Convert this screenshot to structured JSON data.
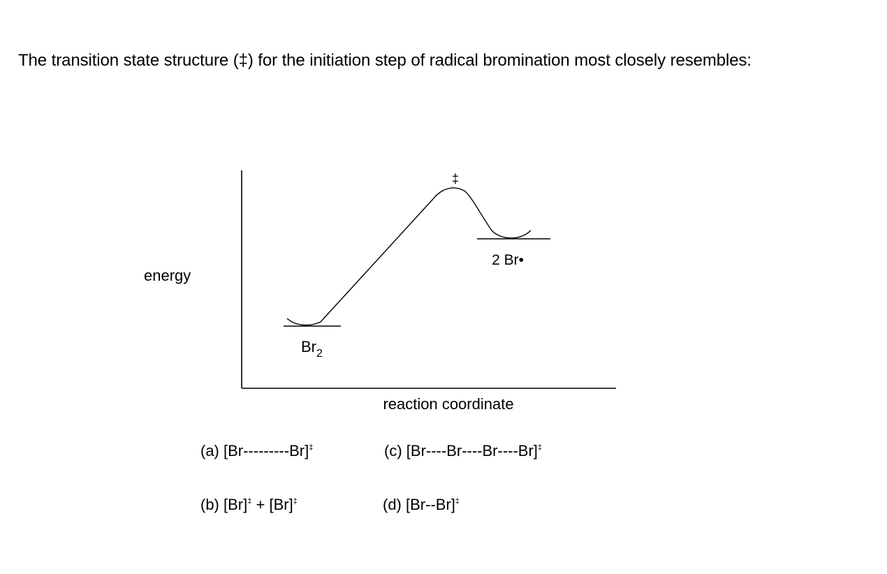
{
  "question": {
    "text": "The transition state structure (‡) for the initiation step of radical bromination most closely resembles:"
  },
  "diagram": {
    "y_axis_label": "energy",
    "x_axis_label": "reaction coordinate",
    "reactant_label": "Br",
    "reactant_subscript": "2",
    "product_label": "2 Br•",
    "transition_state_symbol": "‡"
  },
  "choices": [
    {
      "letter": "(a)",
      "text": "[Br---------Br]",
      "superscript": "‡"
    },
    {
      "letter": "(b)",
      "text": "[Br]",
      "superscript": "‡",
      "joiner": " + ",
      "text2": "[Br]",
      "superscript2": "‡"
    },
    {
      "letter": "(c)",
      "text": "[Br----Br----Br----Br]",
      "superscript": "‡"
    },
    {
      "letter": "(d)",
      "text": "[Br--Br]",
      "superscript": "‡"
    }
  ]
}
